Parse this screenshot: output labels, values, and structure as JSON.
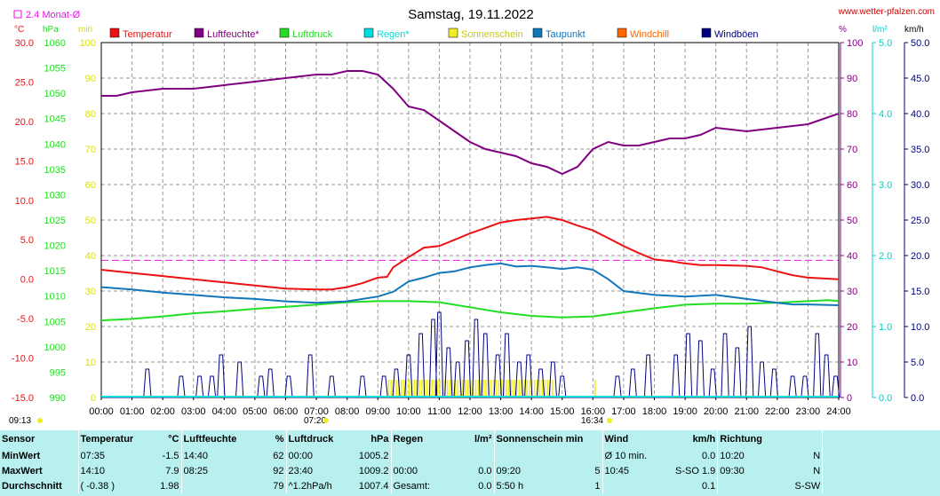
{
  "header": {
    "title": "Samstag, 19.11.2022",
    "source": "www.wetter-pfalzen.com",
    "monthly_avg_label": "2.4 Monat-Ø"
  },
  "units": {
    "temp": "°C",
    "pressure": "hPa",
    "sun": "min",
    "humidity": "%",
    "rain": "l/m²",
    "wind": "km/h"
  },
  "colors": {
    "temperature": "#ee1111",
    "humidity": "#800080",
    "pressure": "#22dd22",
    "rain": "#00dddd",
    "sunshine": "#eeee22",
    "dewpoint": "#1177bb",
    "windchill": "#ff6600",
    "gusts": "#000080"
  },
  "chart_data": {
    "type": "line",
    "title": "Samstag, 19.11.2022",
    "legend": [
      {
        "key": "temperature",
        "label": "Temperatur"
      },
      {
        "key": "humidity",
        "label": "Luftfeuchte*"
      },
      {
        "key": "pressure",
        "label": "Luftdruck"
      },
      {
        "key": "rain",
        "label": "Regen*"
      },
      {
        "key": "sunshine",
        "label": "Sonnenschein"
      },
      {
        "key": "dewpoint",
        "label": "Taupunkt"
      },
      {
        "key": "windchill",
        "label": "Windchill"
      },
      {
        "key": "gusts",
        "label": "Windböen"
      }
    ],
    "x_ticks": [
      "00:00",
      "01:00",
      "02:00",
      "03:00",
      "04:00",
      "05:00",
      "06:00",
      "07:00",
      "08:00",
      "09:00",
      "10:00",
      "11:00",
      "12:00",
      "13:00",
      "14:00",
      "15:00",
      "16:00",
      "17:00",
      "18:00",
      "19:00",
      "20:00",
      "21:00",
      "22:00",
      "23:00",
      "24:00"
    ],
    "xlim": [
      0,
      24
    ],
    "sunrise": "07:20",
    "sunset": "16:34",
    "monthly_avg_temp": 2.4,
    "axes": {
      "temp": {
        "lim": [
          -15,
          30
        ],
        "ticks": [
          "30.0",
          "25.0",
          "20.0",
          "15.0",
          "10.0",
          "5.0",
          "0.0",
          "-5.0",
          "-10.0",
          "-15.0"
        ]
      },
      "pressure": {
        "lim": [
          990,
          1060
        ],
        "ticks": [
          "1060",
          "1055",
          "1050",
          "1045",
          "1040",
          "1035",
          "1030",
          "1025",
          "1020",
          "1015",
          "1010",
          "1005",
          "1000",
          "995",
          "990"
        ]
      },
      "sun": {
        "lim": [
          0,
          100
        ],
        "ticks": [
          "100",
          "90",
          "80",
          "70",
          "60",
          "50",
          "40",
          "30",
          "20",
          "10",
          "0"
        ]
      },
      "humidity": {
        "lim": [
          0,
          100
        ],
        "ticks": [
          "100",
          "90",
          "80",
          "70",
          "60",
          "50",
          "40",
          "30",
          "20",
          "10",
          "0"
        ]
      },
      "rain": {
        "lim": [
          0,
          5
        ],
        "ticks": [
          "5.0",
          "4.0",
          "3.0",
          "2.0",
          "1.0",
          "0.0"
        ]
      },
      "wind": {
        "lim": [
          0,
          50
        ],
        "ticks": [
          "50.0",
          "45.0",
          "40.0",
          "35.0",
          "30.0",
          "25.0",
          "20.0",
          "15.0",
          "10.0",
          "5.0",
          "0.0"
        ]
      }
    },
    "series": [
      {
        "key": "temperature",
        "name": "Temperatur",
        "x": [
          0,
          1,
          2,
          3,
          4,
          5,
          6,
          7,
          7.5,
          8,
          8.5,
          9,
          9.3,
          9.5,
          10,
          10.5,
          11,
          11.5,
          12,
          12.5,
          13,
          13.5,
          14,
          14.5,
          15,
          15.5,
          16,
          16.5,
          17,
          17.5,
          18,
          18.5,
          19,
          19.5,
          20,
          21,
          21.5,
          22,
          22.5,
          23,
          24
        ],
        "y": [
          1.2,
          0.8,
          0.4,
          0,
          -0.4,
          -0.8,
          -1.2,
          -1.3,
          -1.3,
          -1.0,
          -0.5,
          0.2,
          0.3,
          1.5,
          2.8,
          4.0,
          4.2,
          5.0,
          5.8,
          6.5,
          7.2,
          7.5,
          7.7,
          7.9,
          7.5,
          6.8,
          6.2,
          5.2,
          4.2,
          3.3,
          2.5,
          2.3,
          2.0,
          1.8,
          1.8,
          1.7,
          1.5,
          1.0,
          0.5,
          0.2,
          0.0
        ]
      },
      {
        "key": "humidity",
        "name": "Luftfeuchte*",
        "x": [
          0,
          0.5,
          1,
          2,
          3,
          4,
          5,
          6,
          7,
          7.5,
          8,
          8.5,
          9,
          9.5,
          10,
          10.5,
          11,
          11.5,
          12,
          12.5,
          13,
          13.5,
          14,
          14.5,
          15,
          15.5,
          16,
          16.5,
          17,
          17.5,
          18,
          18.5,
          19,
          19.5,
          20,
          21,
          22,
          23,
          24
        ],
        "y": [
          85,
          85,
          86,
          87,
          87,
          88,
          89,
          90,
          91,
          91,
          92,
          92,
          91,
          87,
          82,
          81,
          78,
          75,
          72,
          70,
          69,
          68,
          66,
          65,
          63,
          65,
          70,
          72,
          71,
          71,
          72,
          73,
          73,
          74,
          76,
          75,
          76,
          77,
          80
        ]
      },
      {
        "key": "pressure",
        "name": "Luftdruck",
        "x": [
          0,
          1,
          2,
          3,
          4,
          5,
          6,
          7,
          8,
          9,
          10,
          11,
          12,
          13,
          14,
          15,
          16,
          17,
          18,
          19,
          20,
          21,
          22,
          23,
          23.67,
          24
        ],
        "y": [
          1005.2,
          1005.5,
          1006,
          1006.6,
          1007.0,
          1007.5,
          1007.9,
          1008.3,
          1008.8,
          1009.0,
          1009.0,
          1008.8,
          1007.8,
          1006.8,
          1006.1,
          1005.8,
          1006.0,
          1006.8,
          1007.6,
          1008.3,
          1008.5,
          1008.5,
          1008.7,
          1009.0,
          1009.2,
          1009.0
        ]
      },
      {
        "key": "dewpoint",
        "name": "Taupunkt",
        "x": [
          0,
          1,
          2,
          3,
          4,
          5,
          6,
          7,
          8,
          9,
          9.5,
          10,
          10.5,
          11,
          11.5,
          12,
          12.5,
          13,
          13.5,
          14,
          14.5,
          15,
          15.5,
          16,
          16.5,
          17,
          18,
          19,
          20,
          21,
          22,
          22.5,
          23,
          24
        ],
        "y": [
          -1.0,
          -1.3,
          -1.7,
          -2.0,
          -2.3,
          -2.5,
          -2.8,
          -3.0,
          -2.8,
          -2.2,
          -1.6,
          -0.3,
          0.2,
          0.8,
          1.0,
          1.5,
          1.8,
          2.0,
          1.6,
          1.7,
          1.5,
          1.3,
          1.5,
          1.2,
          0,
          -1.5,
          -2.0,
          -2.2,
          -2.0,
          -2.5,
          -3.0,
          -3.2,
          -3.2,
          -3.3
        ]
      }
    ],
    "gust_spikes": [
      {
        "x": 1.5,
        "y": 4
      },
      {
        "x": 2.6,
        "y": 3
      },
      {
        "x": 3.2,
        "y": 3
      },
      {
        "x": 3.6,
        "y": 3
      },
      {
        "x": 3.9,
        "y": 6
      },
      {
        "x": 4.5,
        "y": 5
      },
      {
        "x": 5.2,
        "y": 3
      },
      {
        "x": 5.5,
        "y": 4
      },
      {
        "x": 6.1,
        "y": 3
      },
      {
        "x": 6.8,
        "y": 6
      },
      {
        "x": 7.5,
        "y": 3
      },
      {
        "x": 8.5,
        "y": 3
      },
      {
        "x": 9.2,
        "y": 3
      },
      {
        "x": 9.6,
        "y": 4
      },
      {
        "x": 10.0,
        "y": 6
      },
      {
        "x": 10.4,
        "y": 9
      },
      {
        "x": 10.8,
        "y": 11
      },
      {
        "x": 11.0,
        "y": 12
      },
      {
        "x": 11.3,
        "y": 7
      },
      {
        "x": 11.6,
        "y": 5
      },
      {
        "x": 11.9,
        "y": 8
      },
      {
        "x": 12.2,
        "y": 11
      },
      {
        "x": 12.5,
        "y": 9
      },
      {
        "x": 12.9,
        "y": 6
      },
      {
        "x": 13.2,
        "y": 9
      },
      {
        "x": 13.6,
        "y": 5
      },
      {
        "x": 13.9,
        "y": 6
      },
      {
        "x": 14.3,
        "y": 4
      },
      {
        "x": 14.7,
        "y": 5
      },
      {
        "x": 15.0,
        "y": 3
      },
      {
        "x": 16.8,
        "y": 3
      },
      {
        "x": 17.3,
        "y": 4
      },
      {
        "x": 17.8,
        "y": 6
      },
      {
        "x": 18.7,
        "y": 6
      },
      {
        "x": 19.1,
        "y": 9
      },
      {
        "x": 19.5,
        "y": 8
      },
      {
        "x": 19.9,
        "y": 4
      },
      {
        "x": 20.3,
        "y": 9
      },
      {
        "x": 20.7,
        "y": 7
      },
      {
        "x": 21.1,
        "y": 10
      },
      {
        "x": 21.5,
        "y": 5
      },
      {
        "x": 21.9,
        "y": 4
      },
      {
        "x": 22.5,
        "y": 3
      },
      {
        "x": 22.9,
        "y": 3
      },
      {
        "x": 23.3,
        "y": 9
      },
      {
        "x": 23.6,
        "y": 6
      },
      {
        "x": 23.9,
        "y": 3
      }
    ],
    "sunshine_bars": [
      {
        "from": 9.33,
        "to": 14.67,
        "value": 5
      },
      {
        "from": 16.05,
        "to": 16.1,
        "value": 5
      }
    ],
    "monthly_avg_time": "09:13"
  },
  "stats": {
    "headers": {
      "sensor": "Sensor",
      "temp": "Temperatur",
      "hum": "Luftfeuchte",
      "press": "Luftdruck",
      "rain": "Regen",
      "sun": "Sonnenschein min",
      "wind": "Wind",
      "dir": "Richtung"
    },
    "units": {
      "temp": "°C",
      "hum": "%",
      "press": "hPa",
      "rain": "l/m²",
      "wind": "km/h"
    },
    "rows": [
      {
        "label": "MinWert",
        "temp_time": "07:35",
        "temp_val": "-1.5",
        "hum_time": "14:40",
        "hum_val": "62",
        "press_time": "00:00",
        "press_val": "1005.2",
        "rain_time": "",
        "rain_val": "",
        "sun_time": "",
        "sun_val": "",
        "wind_time": "Ø 10 min.",
        "wind_val": "0.0",
        "dir_time": "10:20",
        "dir_val": "N"
      },
      {
        "label": "MaxWert",
        "temp_time": "14:10",
        "temp_val": "7.9",
        "hum_time": "08:25",
        "hum_val": "92",
        "press_time": "23:40",
        "press_val": "1009.2",
        "rain_time": "00:00",
        "rain_val": "0.0",
        "sun_time": "09:20",
        "sun_val": "5",
        "wind_time": "10:45",
        "wind_val": "S-SO 1.9",
        "dir_time": "09:30",
        "dir_val": "N"
      },
      {
        "label": "Durchschnitt",
        "temp_time": "( -0.38 )",
        "temp_val": "1.98",
        "hum_time": "",
        "hum_val": "79",
        "press_time": "^1.2hPa/h",
        "press_val": "1007.4",
        "rain_time": "Gesamt:",
        "rain_val": "0.0",
        "sun_time": "5:50 h",
        "sun_val": "1",
        "wind_time": "",
        "wind_val": "0.1",
        "dir_time": "",
        "dir_val": "S-SW"
      }
    ]
  }
}
